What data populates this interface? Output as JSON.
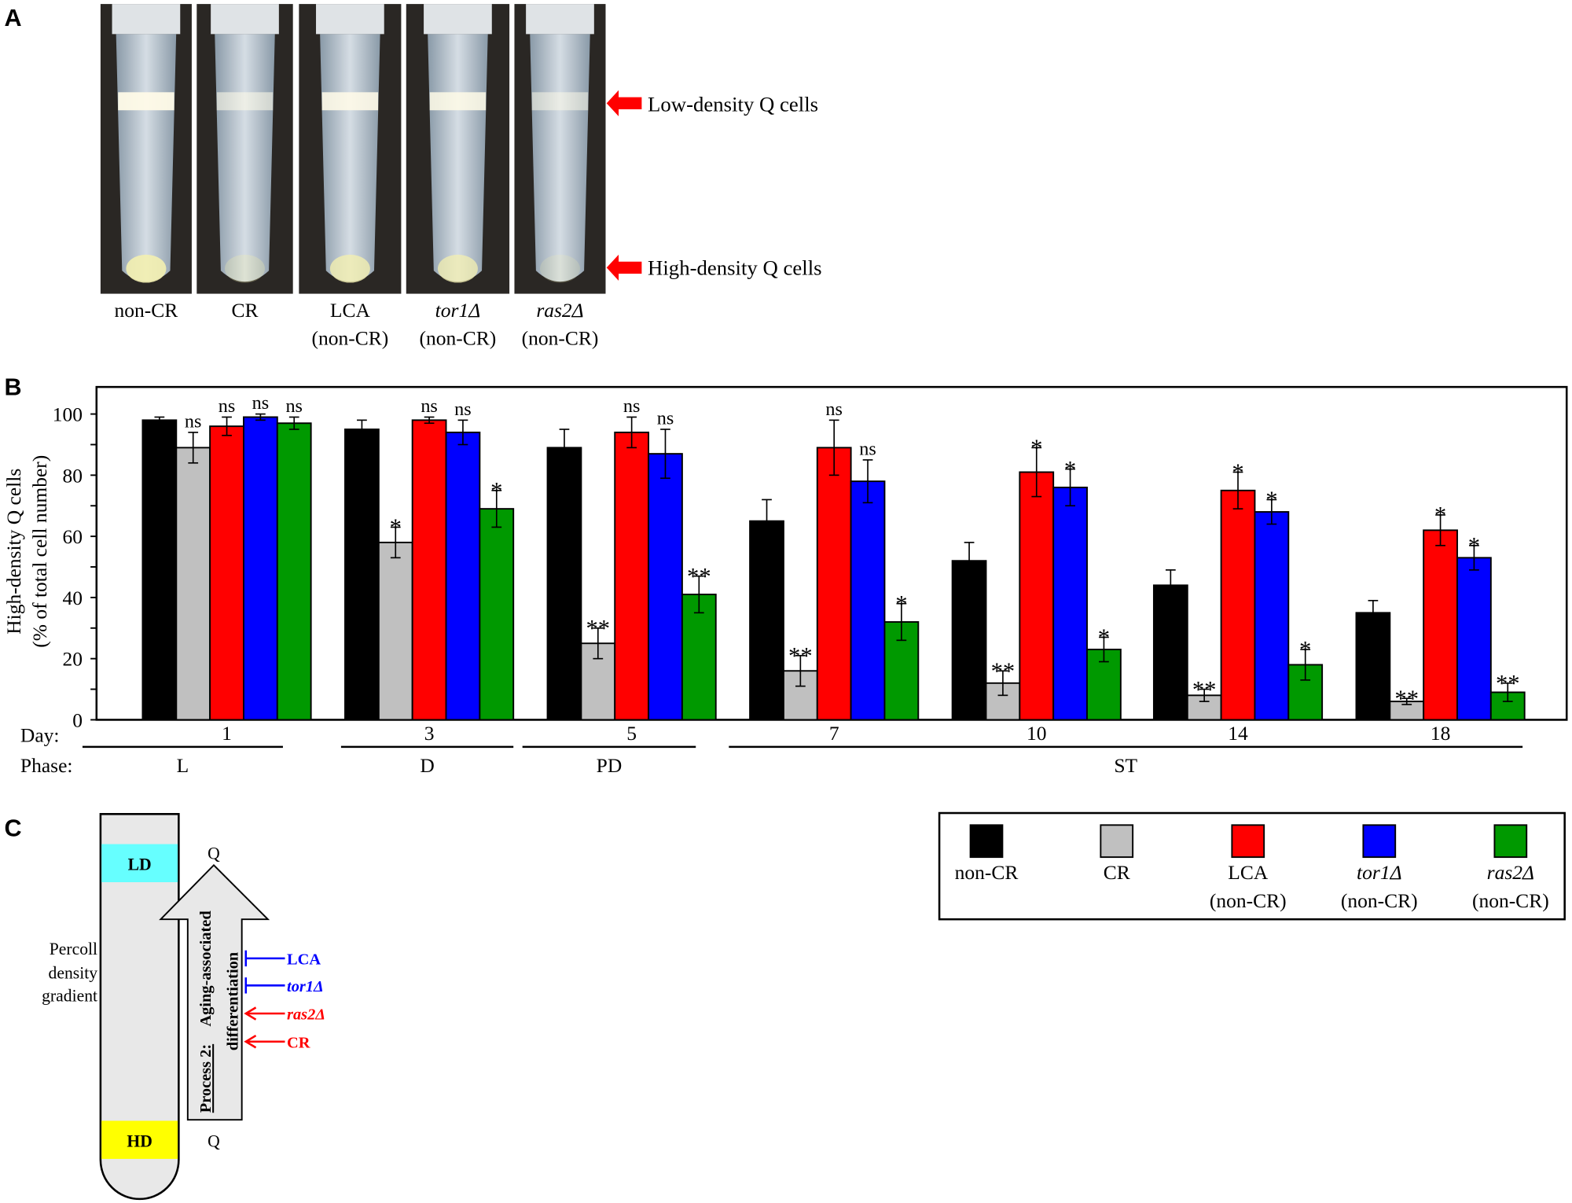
{
  "panels": {
    "a": "A",
    "b": "B",
    "c": "C"
  },
  "panel_a": {
    "tubes": [
      {
        "label": "non-CR",
        "sub": ""
      },
      {
        "label": "CR",
        "sub": ""
      },
      {
        "label": "LCA",
        "sub": "(non-CR)"
      },
      {
        "label": "tor1Δ",
        "sub": "(non-CR)"
      },
      {
        "label": "ras2Δ",
        "sub": "(non-CR)"
      }
    ],
    "arrow_low": "Low-density Q cells",
    "arrow_high": "High-density Q cells",
    "arrow_color": "#ff0000"
  },
  "chart_data": {
    "type": "bar",
    "ylabel_line1": "High-density Q cells",
    "ylabel_line2": "(% of total cell number)",
    "ylim": [
      0,
      100
    ],
    "yticks": [
      "0",
      "20",
      "40",
      "60",
      "80",
      "100"
    ],
    "x_row_label": "Day:",
    "phase_row_label": "Phase:",
    "categories": [
      "1",
      "3",
      "5",
      "7",
      "10",
      "14",
      "18"
    ],
    "phases": [
      {
        "label": "L",
        "days": [
          "1"
        ]
      },
      {
        "label": "D",
        "days": [
          "3"
        ]
      },
      {
        "label": "PD",
        "days": [
          "5"
        ]
      },
      {
        "label": "ST",
        "days": [
          "7",
          "10",
          "14",
          "18"
        ]
      }
    ],
    "series": [
      {
        "name": "non-CR",
        "color": "#000000",
        "values": [
          98,
          95,
          89,
          65,
          52,
          44,
          35
        ],
        "errors": [
          1,
          3,
          6,
          7,
          6,
          5,
          4
        ],
        "sig": [
          "",
          "",
          "",
          "",
          "",
          "",
          ""
        ]
      },
      {
        "name": "CR",
        "color": "#c0c0c0",
        "values": [
          89,
          58,
          25,
          16,
          12,
          8,
          6
        ],
        "errors": [
          5,
          5,
          5,
          5,
          4,
          2,
          1
        ],
        "sig": [
          "ns",
          "*",
          "**",
          "**",
          "**",
          "**",
          "**"
        ]
      },
      {
        "name": "LCA (non-CR)",
        "color": "#ff0000",
        "values": [
          96,
          98,
          94,
          89,
          81,
          75,
          62
        ],
        "errors": [
          3,
          1,
          5,
          9,
          8,
          6,
          5
        ],
        "sig": [
          "ns",
          "ns",
          "ns",
          "ns",
          "*",
          "*",
          "*"
        ]
      },
      {
        "name": "tor1Δ (non-CR)",
        "color": "#0000ff",
        "values": [
          99,
          94,
          87,
          78,
          76,
          68,
          53
        ],
        "errors": [
          1,
          4,
          8,
          7,
          6,
          4,
          4
        ],
        "sig": [
          "ns",
          "ns",
          "ns",
          "ns",
          "*",
          "*",
          "*"
        ]
      },
      {
        "name": "ras2Δ (non-CR)",
        "color": "#009900",
        "values": [
          97,
          69,
          41,
          32,
          23,
          18,
          9
        ],
        "errors": [
          2,
          6,
          6,
          6,
          4,
          5,
          3
        ],
        "sig": [
          "ns",
          "*",
          "**",
          "*",
          "*",
          "*",
          "**"
        ]
      }
    ],
    "legend": [
      {
        "line1": "non-CR",
        "line2": "",
        "italic": false
      },
      {
        "line1": "CR",
        "line2": "",
        "italic": false
      },
      {
        "line1": "LCA",
        "line2": "(non-CR)",
        "italic": false
      },
      {
        "line1": "tor1Δ",
        "line2": "(non-CR)",
        "italic": true
      },
      {
        "line1": "ras2Δ",
        "line2": "(non-CR)",
        "italic": true
      }
    ],
    "legend_placement": "bottom-right"
  },
  "panel_c": {
    "ld": "LD",
    "hd": "HD",
    "ld_color": "#66ffff",
    "hd_color": "#ffff00",
    "gradient_label": [
      "Percoll",
      "density",
      "gradient"
    ],
    "q_top": "Q",
    "q_bottom": "Q",
    "process_label": "Process 2:",
    "process_text1": "Aging-associated",
    "process_text2": "differentiation",
    "effectors": [
      {
        "label": "LCA",
        "color": "#0000ff",
        "type": "inhibit",
        "italic": false
      },
      {
        "label": "tor1Δ",
        "color": "#0000ff",
        "type": "inhibit",
        "italic": true
      },
      {
        "label": "ras2Δ",
        "color": "#ff0000",
        "type": "promote",
        "italic": true
      },
      {
        "label": "CR",
        "color": "#ff0000",
        "type": "promote",
        "italic": false
      }
    ]
  }
}
